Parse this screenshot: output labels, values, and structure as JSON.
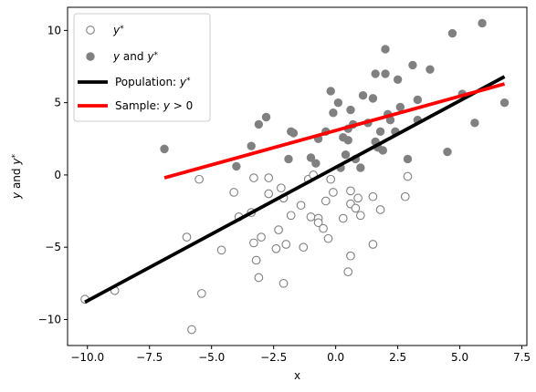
{
  "chart_data": {
    "type": "scatter",
    "xlabel": "x",
    "ylabel_parts": [
      "y",
      " and ",
      "y",
      "*"
    ],
    "xlim": [
      -10.8,
      7.7
    ],
    "ylim": [
      -11.8,
      11.6
    ],
    "xticks": [
      -10.0,
      -7.5,
      -5.0,
      -2.5,
      0.0,
      2.5,
      5.0,
      7.5
    ],
    "xtick_labels": [
      "−10.0",
      "−7.5",
      "−5.0",
      "−2.5",
      "0.0",
      "2.5",
      "5.0",
      "7.5"
    ],
    "yticks": [
      -10,
      -5,
      0,
      5,
      10
    ],
    "ytick_labels": [
      "−10",
      "−5",
      "0",
      "5",
      "10"
    ],
    "legend_position": "top-left",
    "series": [
      {
        "key": "latent",
        "legend": [
          "y",
          "*"
        ],
        "marker": "open-circle",
        "color": "#808080",
        "points": [
          [
            -10.1,
            -8.6
          ],
          [
            -8.9,
            -8.0
          ],
          [
            -6.0,
            -4.3
          ],
          [
            -5.8,
            -10.7
          ],
          [
            -5.5,
            -0.3
          ],
          [
            -5.4,
            -8.2
          ],
          [
            -4.6,
            -5.2
          ],
          [
            -4.1,
            -1.2
          ],
          [
            -3.9,
            -2.9
          ],
          [
            -3.4,
            -2.6
          ],
          [
            -3.3,
            -0.2
          ],
          [
            -3.3,
            -4.7
          ],
          [
            -3.2,
            -5.9
          ],
          [
            -3.1,
            -7.1
          ],
          [
            -3.0,
            -4.3
          ],
          [
            -2.7,
            -0.2
          ],
          [
            -2.7,
            -1.3
          ],
          [
            -2.4,
            -5.1
          ],
          [
            -2.3,
            -3.8
          ],
          [
            -2.2,
            -0.9
          ],
          [
            -2.1,
            -7.5
          ],
          [
            -2.1,
            -1.6
          ],
          [
            -2.0,
            -4.8
          ],
          [
            -1.8,
            -2.8
          ],
          [
            -1.4,
            -2.1
          ],
          [
            -1.3,
            -5.0
          ],
          [
            -1.1,
            -0.3
          ],
          [
            -1.0,
            -2.9
          ],
          [
            -0.9,
            0.0
          ],
          [
            -0.7,
            -3.0
          ],
          [
            -0.7,
            -3.3
          ],
          [
            -0.5,
            -3.7
          ],
          [
            -0.4,
            -1.8
          ],
          [
            -0.3,
            -4.4
          ],
          [
            -0.2,
            -0.3
          ],
          [
            -0.1,
            -1.2
          ],
          [
            0.3,
            -3.0
          ],
          [
            0.5,
            -6.7
          ],
          [
            0.6,
            -5.6
          ],
          [
            0.6,
            -2.0
          ],
          [
            0.6,
            -1.1
          ],
          [
            0.8,
            -2.3
          ],
          [
            0.9,
            -1.6
          ],
          [
            1.0,
            -2.8
          ],
          [
            1.5,
            -4.8
          ],
          [
            1.5,
            -1.5
          ],
          [
            1.8,
            -2.4
          ],
          [
            2.8,
            -1.5
          ],
          [
            2.9,
            -0.1
          ]
        ]
      },
      {
        "key": "observed",
        "legend": [
          "y",
          " and ",
          "y",
          "*"
        ],
        "marker": "filled-circle",
        "color": "#808080",
        "points": [
          [
            -6.9,
            1.8
          ],
          [
            -4.0,
            0.6
          ],
          [
            -3.4,
            2.0
          ],
          [
            -3.1,
            3.5
          ],
          [
            -2.8,
            4.0
          ],
          [
            -1.9,
            1.1
          ],
          [
            -1.8,
            3.0
          ],
          [
            -1.7,
            2.9
          ],
          [
            -1.0,
            1.2
          ],
          [
            -0.8,
            0.8
          ],
          [
            -0.7,
            2.5
          ],
          [
            -0.4,
            3.0
          ],
          [
            -0.2,
            5.8
          ],
          [
            -0.1,
            4.3
          ],
          [
            0.1,
            5.0
          ],
          [
            0.2,
            0.5
          ],
          [
            0.3,
            2.6
          ],
          [
            0.4,
            1.4
          ],
          [
            0.5,
            3.2
          ],
          [
            0.5,
            2.4
          ],
          [
            0.6,
            4.5
          ],
          [
            0.7,
            3.5
          ],
          [
            0.8,
            1.1
          ],
          [
            1.0,
            0.5
          ],
          [
            1.1,
            5.5
          ],
          [
            1.3,
            3.6
          ],
          [
            1.5,
            5.3
          ],
          [
            1.6,
            7.0
          ],
          [
            1.6,
            2.3
          ],
          [
            1.7,
            1.9
          ],
          [
            1.8,
            3.0
          ],
          [
            1.9,
            1.7
          ],
          [
            2.0,
            7.0
          ],
          [
            2.0,
            8.7
          ],
          [
            2.1,
            4.2
          ],
          [
            2.2,
            3.8
          ],
          [
            2.4,
            3.0
          ],
          [
            2.5,
            6.6
          ],
          [
            2.6,
            4.7
          ],
          [
            2.9,
            1.1
          ],
          [
            3.1,
            7.6
          ],
          [
            3.3,
            3.8
          ],
          [
            3.3,
            5.2
          ],
          [
            3.8,
            7.3
          ],
          [
            4.5,
            1.6
          ],
          [
            4.7,
            9.8
          ],
          [
            5.1,
            5.6
          ],
          [
            5.6,
            3.6
          ],
          [
            5.9,
            10.5
          ],
          [
            6.8,
            5.0
          ]
        ]
      }
    ],
    "lines": [
      {
        "key": "population",
        "legend": [
          "Population: ",
          "y",
          "*"
        ],
        "color": "#000000",
        "from": [
          -10.1,
          -8.8
        ],
        "to": [
          6.8,
          6.8
        ]
      },
      {
        "key": "sample",
        "legend": [
          "Sample: ",
          "y",
          " > 0"
        ],
        "color": "#ff0000",
        "from": [
          -6.9,
          -0.2
        ],
        "to": [
          6.8,
          6.3
        ]
      }
    ]
  }
}
